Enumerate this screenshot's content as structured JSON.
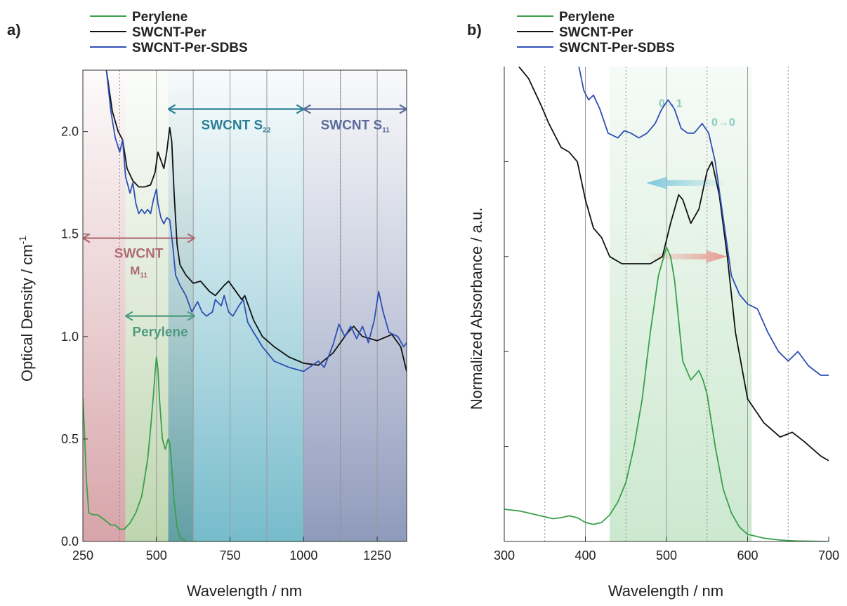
{
  "chart_data": [
    {
      "panel_label": "a)",
      "type": "line",
      "xlabel": "Wavelength / nm",
      "ylabel": "Optical Density / cm",
      "ylabel_sup": "-1",
      "xlim": [
        250,
        1350
      ],
      "ylim": [
        0.0,
        2.3
      ],
      "xticks": [
        250,
        500,
        750,
        1000,
        1250
      ],
      "ytick_labels": [
        "0.0",
        "0.5",
        "1.0",
        "1.5",
        "2.0"
      ],
      "yticks": [
        0,
        0.5,
        1.0,
        1.5,
        2.0
      ],
      "vgrid_solid": [
        500,
        625,
        750,
        875,
        1000,
        1125,
        1250
      ],
      "vgrid_dotted": [
        375,
        1125
      ],
      "legend": {
        "position": "top-left",
        "entries": [
          "Perylene",
          "SWCNT-Per",
          "SWCNT-Per-SDBS"
        ]
      },
      "colors": {
        "Perylene": "#3aa04a",
        "SWCNT-Per": "#111111",
        "SWCNT-Per-SDBS": "#2f4fb5"
      },
      "regions": [
        {
          "from": 250,
          "to": 395,
          "color": "#c9868c"
        },
        {
          "from": 395,
          "to": 540,
          "color": "#a8c896"
        },
        {
          "from": 540,
          "to": 625,
          "color": "#2e7f86"
        },
        {
          "from": 625,
          "to": 1000,
          "color": "#4aa6bb"
        },
        {
          "from": 1000,
          "to": 1350,
          "color": "#6a78a6"
        }
      ],
      "annotations": [
        {
          "text": "SWCNT S",
          "sub": "22",
          "from": 540,
          "to": 1000,
          "y": 2.11,
          "color": "#2a7f95"
        },
        {
          "text": "SWCNT S",
          "sub": "11",
          "from": 1000,
          "to": 1350,
          "y": 2.11,
          "color": "#5a6a9a"
        },
        {
          "text": "SWCNT",
          "line2": "M",
          "sub": "11",
          "from": 250,
          "to": 630,
          "y": 1.48,
          "color": "#b06a72"
        },
        {
          "text": "Perylene",
          "from": 395,
          "to": 630,
          "y": 1.1,
          "color": "#4f9a80"
        }
      ],
      "series": [
        {
          "name": "Perylene",
          "x": [
            250,
            255,
            262,
            270,
            285,
            300,
            320,
            345,
            360,
            375,
            390,
            410,
            430,
            450,
            470,
            480,
            490,
            495,
            500,
            505,
            510,
            520,
            530,
            540,
            545,
            550,
            560,
            570,
            580,
            600,
            650,
            750,
            900,
            1000,
            1100,
            1200,
            1350
          ],
          "y": [
            0.7,
            0.55,
            0.3,
            0.14,
            0.13,
            0.13,
            0.11,
            0.08,
            0.08,
            0.06,
            0.06,
            0.09,
            0.14,
            0.22,
            0.4,
            0.55,
            0.72,
            0.82,
            0.9,
            0.84,
            0.7,
            0.5,
            0.45,
            0.5,
            0.48,
            0.4,
            0.2,
            0.07,
            0.02,
            0.0,
            0.0,
            0.0,
            0.0,
            0.0,
            0.0,
            0.0,
            0.0
          ]
        },
        {
          "name": "SWCNT-Per",
          "x": [
            330,
            350,
            370,
            385,
            400,
            420,
            440,
            460,
            480,
            495,
            505,
            515,
            525,
            535,
            545,
            552,
            560,
            570,
            580,
            600,
            625,
            650,
            680,
            700,
            730,
            745,
            760,
            790,
            800,
            810,
            830,
            860,
            900,
            950,
            1000,
            1050,
            1100,
            1150,
            1170,
            1200,
            1250,
            1300,
            1330,
            1350
          ],
          "y": [
            2.3,
            2.1,
            2.0,
            1.96,
            1.82,
            1.76,
            1.73,
            1.73,
            1.74,
            1.8,
            1.9,
            1.86,
            1.82,
            1.9,
            2.02,
            1.95,
            1.7,
            1.45,
            1.35,
            1.3,
            1.26,
            1.27,
            1.22,
            1.2,
            1.25,
            1.27,
            1.24,
            1.18,
            1.2,
            1.16,
            1.08,
            1.0,
            0.95,
            0.9,
            0.87,
            0.86,
            0.92,
            1.02,
            1.05,
            1.0,
            0.98,
            1.01,
            0.95,
            0.83
          ]
        },
        {
          "name": "SWCNT-Per-SDBS",
          "x": [
            330,
            345,
            360,
            375,
            385,
            395,
            410,
            420,
            430,
            440,
            450,
            460,
            470,
            480,
            490,
            500,
            505,
            515,
            525,
            535,
            545,
            555,
            565,
            580,
            600,
            620,
            640,
            655,
            670,
            690,
            700,
            720,
            730,
            745,
            760,
            780,
            795,
            810,
            830,
            860,
            900,
            950,
            1000,
            1050,
            1070,
            1100,
            1120,
            1140,
            1160,
            1180,
            1200,
            1220,
            1240,
            1255,
            1270,
            1290,
            1320,
            1340,
            1350
          ],
          "y": [
            2.3,
            2.1,
            1.97,
            1.9,
            1.96,
            1.78,
            1.7,
            1.75,
            1.65,
            1.6,
            1.62,
            1.6,
            1.62,
            1.6,
            1.67,
            1.72,
            1.65,
            1.58,
            1.55,
            1.58,
            1.57,
            1.45,
            1.3,
            1.25,
            1.2,
            1.12,
            1.17,
            1.12,
            1.1,
            1.12,
            1.18,
            1.15,
            1.2,
            1.12,
            1.1,
            1.15,
            1.18,
            1.07,
            1.02,
            0.95,
            0.88,
            0.85,
            0.83,
            0.88,
            0.85,
            0.96,
            1.06,
            1.0,
            1.05,
            0.99,
            1.05,
            0.97,
            1.08,
            1.22,
            1.12,
            1.02,
            1.0,
            0.95,
            0.97
          ]
        }
      ]
    },
    {
      "panel_label": "b)",
      "type": "line",
      "xlabel": "Wavelength / nm",
      "ylabel": "Normalized Absorbance / a.u.",
      "xlim": [
        300,
        700
      ],
      "xticks": [
        300,
        400,
        500,
        600,
        700
      ],
      "ylim": [
        0,
        1
      ],
      "vgrid_solid": [
        400,
        500,
        600
      ],
      "vgrid_dotted": [
        350,
        450,
        550,
        650
      ],
      "legend": {
        "position": "top-left",
        "entries": [
          "Perylene",
          "SWCNT-Per",
          "SWCNT-Per-SDBS"
        ]
      },
      "colors": {
        "Perylene": "#3aa04a",
        "SWCNT-Per": "#111111",
        "SWCNT-Per-SDBS": "#2f4fb5"
      },
      "band": {
        "from": 430,
        "to": 605,
        "color": "#5fb86a"
      },
      "annotations": [
        {
          "text": "0→1",
          "x": 505,
          "y": 0.915,
          "color": "#8cc9bf"
        },
        {
          "text": "0→0",
          "x": 570,
          "y": 0.875,
          "color": "#8cc9bf"
        },
        {
          "arrow": "left",
          "from": 575,
          "to": 475,
          "y": 0.755,
          "color": "#7fc8dd"
        },
        {
          "arrow": "right",
          "from": 475,
          "to": 575,
          "y": 0.6,
          "color": "#e89a92"
        }
      ],
      "series": [
        {
          "name": "Perylene",
          "x": [
            300,
            320,
            340,
            360,
            370,
            380,
            390,
            400,
            410,
            420,
            430,
            440,
            450,
            460,
            470,
            480,
            490,
            500,
            505,
            510,
            520,
            530,
            540,
            545,
            550,
            560,
            570,
            580,
            590,
            600,
            620,
            640,
            660,
            700
          ],
          "y": [
            0.068,
            0.064,
            0.056,
            0.048,
            0.05,
            0.054,
            0.05,
            0.04,
            0.036,
            0.04,
            0.056,
            0.083,
            0.125,
            0.2,
            0.3,
            0.44,
            0.56,
            0.62,
            0.6,
            0.55,
            0.38,
            0.34,
            0.36,
            0.34,
            0.31,
            0.2,
            0.11,
            0.06,
            0.03,
            0.015,
            0.007,
            0.003,
            0.001,
            0.0
          ]
        },
        {
          "name": "SWCNT-Per",
          "x": [
            318,
            330,
            345,
            355,
            370,
            380,
            390,
            400,
            410,
            420,
            430,
            445,
            460,
            480,
            495,
            505,
            515,
            520,
            530,
            540,
            550,
            556,
            565,
            575,
            585,
            600,
            620,
            640,
            655,
            670,
            690,
            700
          ],
          "y": [
            1.0,
            0.975,
            0.92,
            0.88,
            0.83,
            0.82,
            0.8,
            0.72,
            0.66,
            0.64,
            0.6,
            0.585,
            0.585,
            0.585,
            0.6,
            0.67,
            0.73,
            0.72,
            0.67,
            0.7,
            0.78,
            0.8,
            0.73,
            0.6,
            0.44,
            0.3,
            0.25,
            0.22,
            0.23,
            0.21,
            0.18,
            0.17
          ]
        },
        {
          "name": "SWCNT-Per-SDBS",
          "x": [
            392,
            398,
            404,
            410,
            418,
            428,
            440,
            448,
            456,
            466,
            476,
            486,
            494,
            502,
            510,
            518,
            526,
            534,
            544,
            552,
            560,
            570,
            580,
            590,
            600,
            612,
            625,
            638,
            650,
            662,
            675,
            690,
            700
          ],
          "y": [
            1.0,
            0.95,
            0.93,
            0.94,
            0.91,
            0.86,
            0.85,
            0.865,
            0.86,
            0.85,
            0.86,
            0.88,
            0.91,
            0.93,
            0.91,
            0.87,
            0.86,
            0.86,
            0.88,
            0.86,
            0.8,
            0.68,
            0.56,
            0.52,
            0.5,
            0.49,
            0.44,
            0.4,
            0.38,
            0.4,
            0.37,
            0.35,
            0.35
          ]
        }
      ]
    }
  ]
}
